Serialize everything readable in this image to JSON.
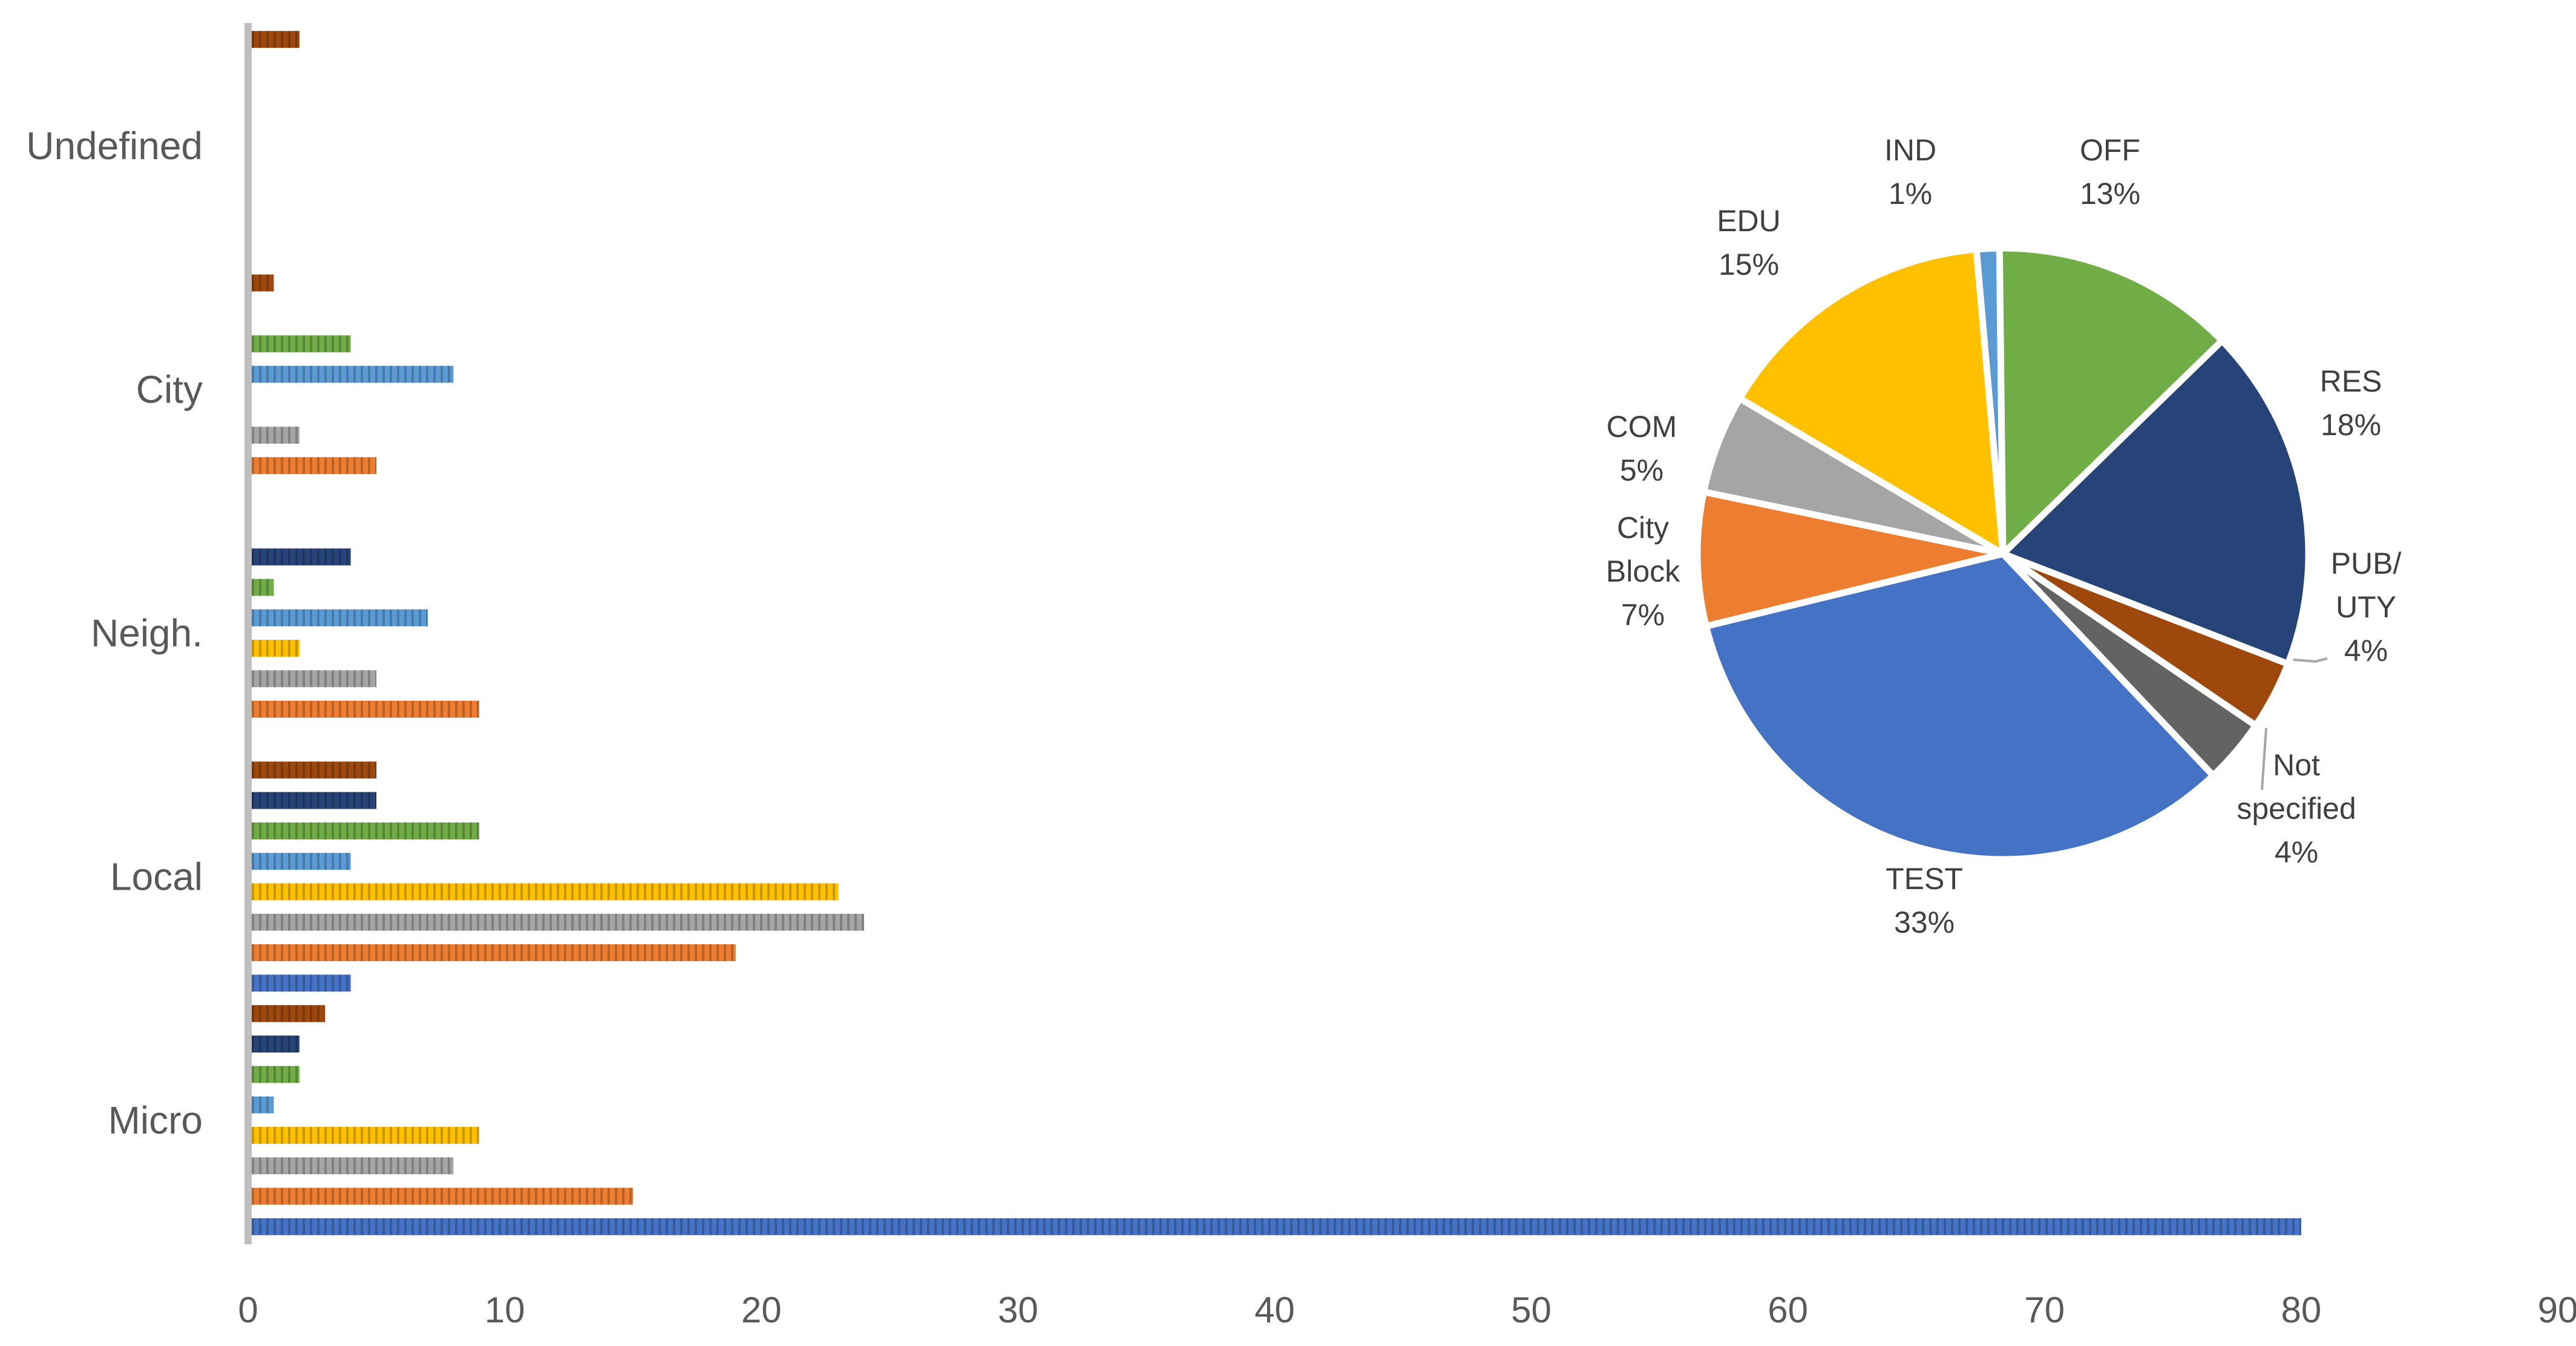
{
  "chart_data": [
    {
      "type": "bar",
      "orientation": "horizontal",
      "categories": [
        "Micro",
        "Local",
        "Neigh.",
        "City",
        "Undefined"
      ],
      "xlim": [
        0,
        90
      ],
      "x_ticks": [
        0,
        10,
        20,
        30,
        40,
        50,
        60,
        70,
        80,
        90
      ],
      "grid": false,
      "legend": "none",
      "series": [
        {
          "key": "TEST",
          "color": "#4472C4",
          "values": [
            80,
            4,
            null,
            null,
            null
          ]
        },
        {
          "key": "City Block",
          "color": "#ED7D31",
          "values": [
            15,
            19,
            9,
            5,
            null
          ]
        },
        {
          "key": "COM",
          "color": "#A5A5A5",
          "values": [
            8,
            24,
            5,
            2,
            null
          ]
        },
        {
          "key": "EDU",
          "color": "#FFC000",
          "values": [
            9,
            23,
            2,
            null,
            null
          ]
        },
        {
          "key": "IND",
          "color": "#5B9BD5",
          "values": [
            1,
            4,
            7,
            8,
            null
          ]
        },
        {
          "key": "OFF",
          "color": "#70AD47",
          "values": [
            2,
            9,
            1,
            4,
            null
          ]
        },
        {
          "key": "RES",
          "color": "#264478",
          "values": [
            2,
            5,
            4,
            null,
            null
          ]
        },
        {
          "key": "PUB/UTY",
          "color": "#9E480E",
          "values": [
            3,
            5,
            null,
            1,
            2
          ]
        }
      ]
    },
    {
      "type": "pie",
      "start_angle_deg": -5,
      "slices": [
        {
          "label": "IND",
          "pct_label": "1%",
          "value": 1.2,
          "color": "#5B9BD5"
        },
        {
          "label": "OFF",
          "pct_label": "13%",
          "value": 12.8,
          "color": "#70AD47"
        },
        {
          "label": "RES",
          "pct_label": "18%",
          "value": 18.0,
          "color": "#264478"
        },
        {
          "label": "PUB/ UTY",
          "pct_label": "4%",
          "value": 3.6,
          "color": "#9E480E"
        },
        {
          "label": "Not specified",
          "pct_label": "4%",
          "value": 3.4,
          "color": "#636363"
        },
        {
          "label": "TEST",
          "pct_label": "33%",
          "value": 33.0,
          "color": "#4472C4"
        },
        {
          "label": "City Block",
          "pct_label": "7%",
          "value": 7.0,
          "color": "#ED7D31"
        },
        {
          "label": "COM",
          "pct_label": "5%",
          "value": 5.2,
          "color": "#A5A5A5"
        },
        {
          "label": "EDU",
          "pct_label": "15%",
          "value": 15.0,
          "color": "#FFC000"
        }
      ]
    }
  ]
}
